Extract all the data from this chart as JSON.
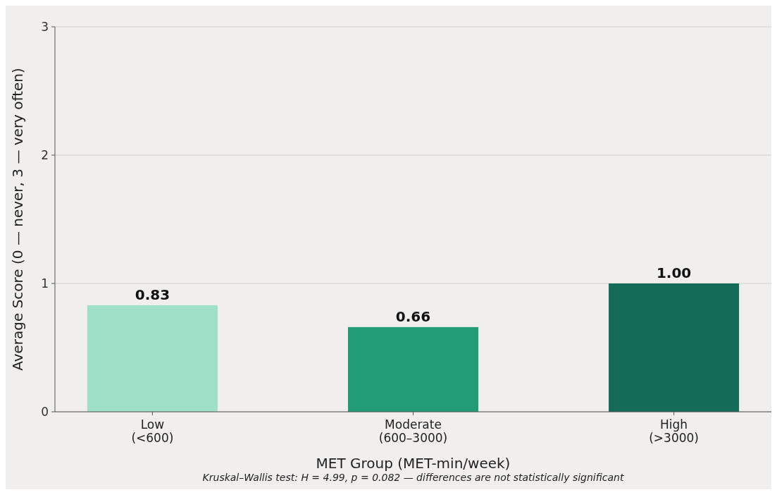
{
  "chart_data": {
    "type": "bar",
    "xlabel": "MET Group (MET-min/week)",
    "ylabel": "Average Score (0 — never, 3 — very often)",
    "categories": [
      "Low\n(<600)",
      "Moderate\n(600–3000)",
      "High\n(>3000)"
    ],
    "values": [
      0.83,
      0.66,
      1.0
    ],
    "value_labels": [
      "0.83",
      "0.66",
      "1.00"
    ],
    "colors": [
      "#a0dfc8",
      "#229b77",
      "#136b58"
    ],
    "ylim": [
      0,
      3
    ],
    "yticks": [
      0,
      1,
      2,
      3
    ],
    "grid": "y",
    "annotations": [
      "Kruskal–Wallis test: H = 4.99, p = 0.082 — differences are not statistically significant"
    ]
  }
}
